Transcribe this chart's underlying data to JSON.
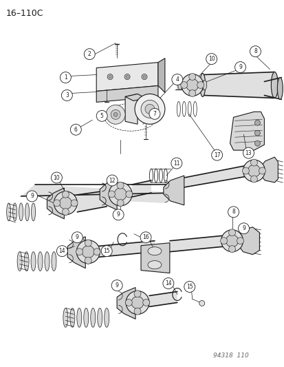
{
  "diagram_id": "16-110C",
  "bottom_right_text": "94318  110",
  "background_color": "#ffffff",
  "line_color": "#1a1a1a",
  "fig_width": 4.14,
  "fig_height": 5.33,
  "dpi": 100,
  "title": "16–110C",
  "title_fontsize": 9,
  "watermark": "94318  110",
  "watermark_fontsize": 6.5,
  "label_fontsize": 5.5,
  "label_circle_r": 0.018,
  "lw_thin": 0.5,
  "lw_med": 0.8,
  "lw_thick": 1.2
}
